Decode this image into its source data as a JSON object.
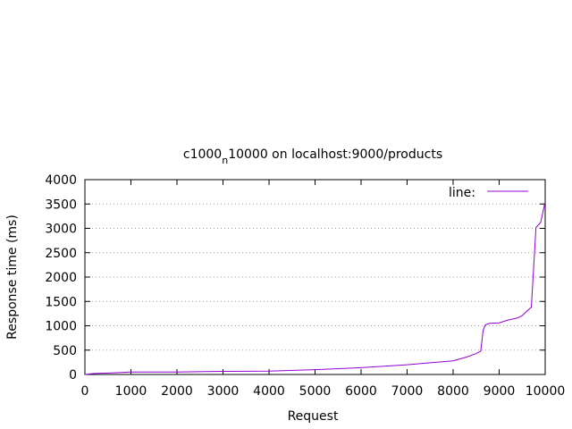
{
  "chart_data": {
    "type": "line",
    "title": {
      "main": "c1000",
      "sub": "n",
      "rest": "10000 on localhost:9000/products"
    },
    "xlabel": "Request",
    "ylabel": "Response time (ms)",
    "xlim": [
      0,
      10000
    ],
    "ylim": [
      0,
      4000
    ],
    "xticks": [
      0,
      1000,
      2000,
      3000,
      4000,
      5000,
      6000,
      7000,
      8000,
      9000,
      10000
    ],
    "yticks": [
      0,
      500,
      1000,
      1500,
      2000,
      2500,
      3000,
      3500,
      4000
    ],
    "grid": "dotted",
    "legend_position": "top-right",
    "series": [
      {
        "name": "line:",
        "color": "#9400d3",
        "x": [
          0,
          200,
          500,
          1000,
          2000,
          2600,
          3000,
          4000,
          5000,
          6000,
          7000,
          7500,
          8000,
          8300,
          8500,
          8600,
          8650,
          8700,
          8800,
          9000,
          9200,
          9400,
          9500,
          9600,
          9700,
          9750,
          9800,
          9900,
          10000
        ],
        "y": [
          0,
          20,
          30,
          50,
          50,
          60,
          65,
          70,
          100,
          140,
          200,
          240,
          280,
          360,
          430,
          480,
          900,
          1020,
          1050,
          1060,
          1120,
          1160,
          1210,
          1300,
          1380,
          2200,
          3020,
          3120,
          3550
        ]
      }
    ]
  }
}
